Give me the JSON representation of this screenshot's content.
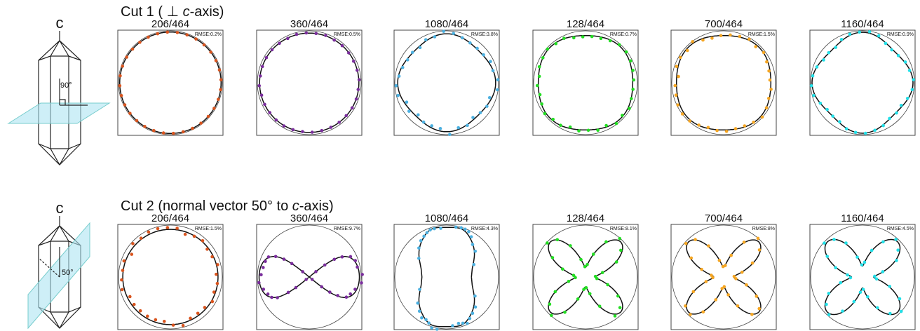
{
  "rows": [
    {
      "title_parts": [
        "Cut 1 ( ⊥ ",
        "c",
        "-axis)"
      ],
      "panels": [
        {
          "title": "206/464",
          "rmse": "RMSE:0.2%",
          "color": "#d9541e"
        },
        {
          "title": "360/464",
          "rmse": "RMSE:0.5%",
          "color": "#7a2e9c"
        },
        {
          "title": "1080/464",
          "rmse": "RMSE:3.8%",
          "color": "#4cb0e0"
        },
        {
          "title": "128/464",
          "rmse": "RMSE:0.7%",
          "color": "#22dd22"
        },
        {
          "title": "700/464",
          "rmse": "RMSE:1.5%",
          "color": "#f5a623"
        },
        {
          "title": "1160/464",
          "rmse": "RMSE:0.9%",
          "color": "#22e0e8"
        }
      ]
    },
    {
      "title_parts": [
        "Cut 2 (normal vector 50° to ",
        "c",
        "-axis)"
      ],
      "panels": [
        {
          "title": "206/464",
          "rmse": "RMSE:1.5%",
          "color": "#d9541e"
        },
        {
          "title": "360/464",
          "rmse": "RMSE:9.7%",
          "color": "#7a2e9c"
        },
        {
          "title": "1080/464",
          "rmse": "RMSE:4.3%",
          "color": "#4cb0e0"
        },
        {
          "title": "128/464",
          "rmse": "RMSE:8.1%",
          "color": "#22dd22"
        },
        {
          "title": "700/464",
          "rmse": "RMSE:8%",
          "color": "#f5a623"
        },
        {
          "title": "1160/464",
          "rmse": "RMSE:4.5%",
          "color": "#22e0e8"
        }
      ]
    }
  ],
  "diagrams": [
    {
      "label": "c",
      "angle": "90°"
    },
    {
      "label": "c",
      "angle": "50°"
    }
  ]
}
